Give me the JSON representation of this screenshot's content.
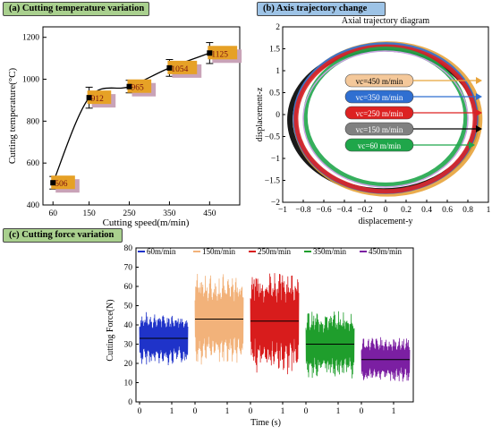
{
  "panels": {
    "a": "(a) Cutting temperature variation",
    "b": "(b) Axis trajectory change",
    "c": "(c) Cutting force variation"
  },
  "chart_data": [
    {
      "id": "a",
      "type": "line",
      "title": "(a) Cutting temperature variation",
      "xlabel": "Cutting speed(m/min)",
      "ylabel": "Cutting temperature(°C)",
      "x": [
        60,
        150,
        250,
        350,
        450
      ],
      "values": [
        506,
        912,
        965,
        1054,
        1125
      ],
      "error": [
        30,
        50,
        30,
        40,
        50
      ],
      "data_labels": [
        "506",
        "912",
        "965",
        "1054",
        "1125"
      ],
      "xlim": [
        35,
        525
      ],
      "ylim": [
        400,
        1250
      ],
      "xticks": [
        60,
        150,
        250,
        350,
        450
      ],
      "yticks": [
        400,
        600,
        800,
        1000,
        1200
      ],
      "grid": false,
      "label_color": "#e6a126",
      "label_shadow": "#c9a3b8"
    },
    {
      "id": "b",
      "type": "line",
      "title": "Axial trajectory diagram",
      "xlabel": "displacement-y",
      "ylabel": "displacement-z",
      "xlim": [
        -1,
        1
      ],
      "ylim": [
        -2,
        2
      ],
      "xticks": [
        -1,
        -0.8,
        -0.6,
        -0.4,
        -0.2,
        0,
        0.2,
        0.4,
        0.6,
        0.8,
        1
      ],
      "xtick_labels": [
        "−1",
        "−0.8",
        "−0.6",
        "−0.4",
        "−0.2",
        "0",
        "0.2",
        "0.4",
        "0.6",
        "0.8",
        "1"
      ],
      "yticks": [
        -2,
        -1.5,
        -1,
        -0.5,
        0,
        0.5,
        1,
        1.5,
        2
      ],
      "ytick_labels": [
        "−2",
        "−1.5",
        "−1",
        "−0.5",
        "0",
        "0.5",
        "1",
        "1.5",
        "2"
      ],
      "grid": false,
      "series": [
        {
          "name": "vc=450 m/min",
          "color": "#e8a33a",
          "fill": "#f4c89a",
          "cx": 0.02,
          "cy": -0.1,
          "rx": 0.9,
          "ry": 1.72
        },
        {
          "name": "vc=350 m/min",
          "color": "#2f6fd1",
          "fill": "#2f6fd1",
          "cx": 0.0,
          "cy": -0.08,
          "rx": 0.88,
          "ry": 1.68
        },
        {
          "name": "vc=250 m/min",
          "color": "#dd2222",
          "fill": "#dd2222",
          "cx": 0.0,
          "cy": -0.1,
          "rx": 0.87,
          "ry": 1.65
        },
        {
          "name": "vc=150 m/min",
          "color": "#000000",
          "fill": "#808080",
          "cx": -0.02,
          "cy": -0.12,
          "rx": 0.91,
          "ry": 1.62
        },
        {
          "name": "vc=60 m/min",
          "color": "#1fa64a",
          "fill": "#1fa64a",
          "cx": 0.0,
          "cy": -0.05,
          "rx": 0.78,
          "ry": 1.55
        }
      ]
    },
    {
      "id": "c",
      "type": "area",
      "xlabel": "Time (s)",
      "ylabel": "Cutting Force(N)",
      "ylim": [
        0,
        80
      ],
      "yticks": [
        0,
        10,
        20,
        30,
        40,
        50,
        60,
        70,
        80
      ],
      "x_segment_ticks": [
        "0",
        "1"
      ],
      "segment_duration_s": 1.5,
      "grid": false,
      "series": [
        {
          "name": "60m/min",
          "color": "#1f33c9",
          "mean": 33,
          "amplitude": 14,
          "spike_max": 57
        },
        {
          "name": "150m/min",
          "color": "#f2b27a",
          "mean": 43,
          "amplitude": 24,
          "spike_max": 76
        },
        {
          "name": "250m/min",
          "color": "#d81c1c",
          "mean": 42,
          "amplitude": 28,
          "spike_max": 79
        },
        {
          "name": "350m/min",
          "color": "#1f9e2c",
          "mean": 30,
          "amplitude": 18,
          "spike_max": 55
        },
        {
          "name": "450m/min",
          "color": "#7b1fa2",
          "mean": 22,
          "amplitude": 12,
          "spike_max": 37
        }
      ]
    }
  ]
}
